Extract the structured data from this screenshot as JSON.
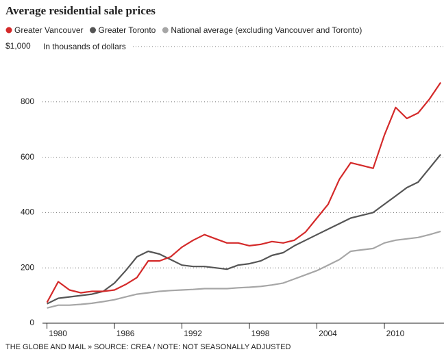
{
  "chart_data": {
    "type": "line",
    "title": "Average residential sale prices",
    "annotation": "In thousands of dollars",
    "source": "THE GLOBE AND MAIL » SOURCE: CREA / NOTE: NOT SEASONALLY ADJUSTED",
    "x": [
      1980,
      1981,
      1982,
      1983,
      1984,
      1985,
      1986,
      1987,
      1988,
      1989,
      1990,
      1991,
      1992,
      1993,
      1994,
      1995,
      1996,
      1997,
      1998,
      1999,
      2000,
      2001,
      2002,
      2003,
      2004,
      2005,
      2006,
      2007,
      2008,
      2009,
      2010,
      2011,
      2012,
      2013,
      2014,
      2015
    ],
    "series": [
      {
        "name": "Greater Vancouver",
        "color": "#d42a2a",
        "values": [
          75,
          150,
          120,
          110,
          115,
          115,
          120,
          140,
          165,
          225,
          225,
          240,
          275,
          300,
          320,
          305,
          290,
          290,
          280,
          285,
          295,
          290,
          300,
          330,
          380,
          430,
          520,
          580,
          570,
          560,
          680,
          780,
          740,
          760,
          810,
          870
        ]
      },
      {
        "name": "Greater Toronto",
        "color": "#555555",
        "values": [
          70,
          90,
          95,
          100,
          105,
          115,
          145,
          190,
          240,
          260,
          250,
          230,
          210,
          205,
          205,
          200,
          195,
          210,
          215,
          225,
          245,
          255,
          280,
          300,
          320,
          340,
          360,
          380,
          390,
          400,
          430,
          460,
          490,
          510,
          560,
          610
        ]
      },
      {
        "name": "National average (excluding Vancouver and Toronto)",
        "color": "#a6a6a6",
        "values": [
          55,
          65,
          65,
          68,
          72,
          78,
          85,
          95,
          105,
          110,
          115,
          118,
          120,
          122,
          125,
          125,
          125,
          128,
          130,
          133,
          138,
          145,
          160,
          175,
          190,
          210,
          230,
          260,
          265,
          270,
          290,
          300,
          305,
          310,
          320,
          332
        ]
      }
    ],
    "xlim": [
      1979.6,
      2015.3
    ],
    "xticks": [
      1980,
      1986,
      1992,
      1998,
      2004,
      2010
    ],
    "ylim": [
      0,
      1000
    ],
    "yticks": [
      0,
      200,
      400,
      600,
      800,
      {
        "value": 1000,
        "label": "$1,000"
      }
    ],
    "grid": true
  }
}
